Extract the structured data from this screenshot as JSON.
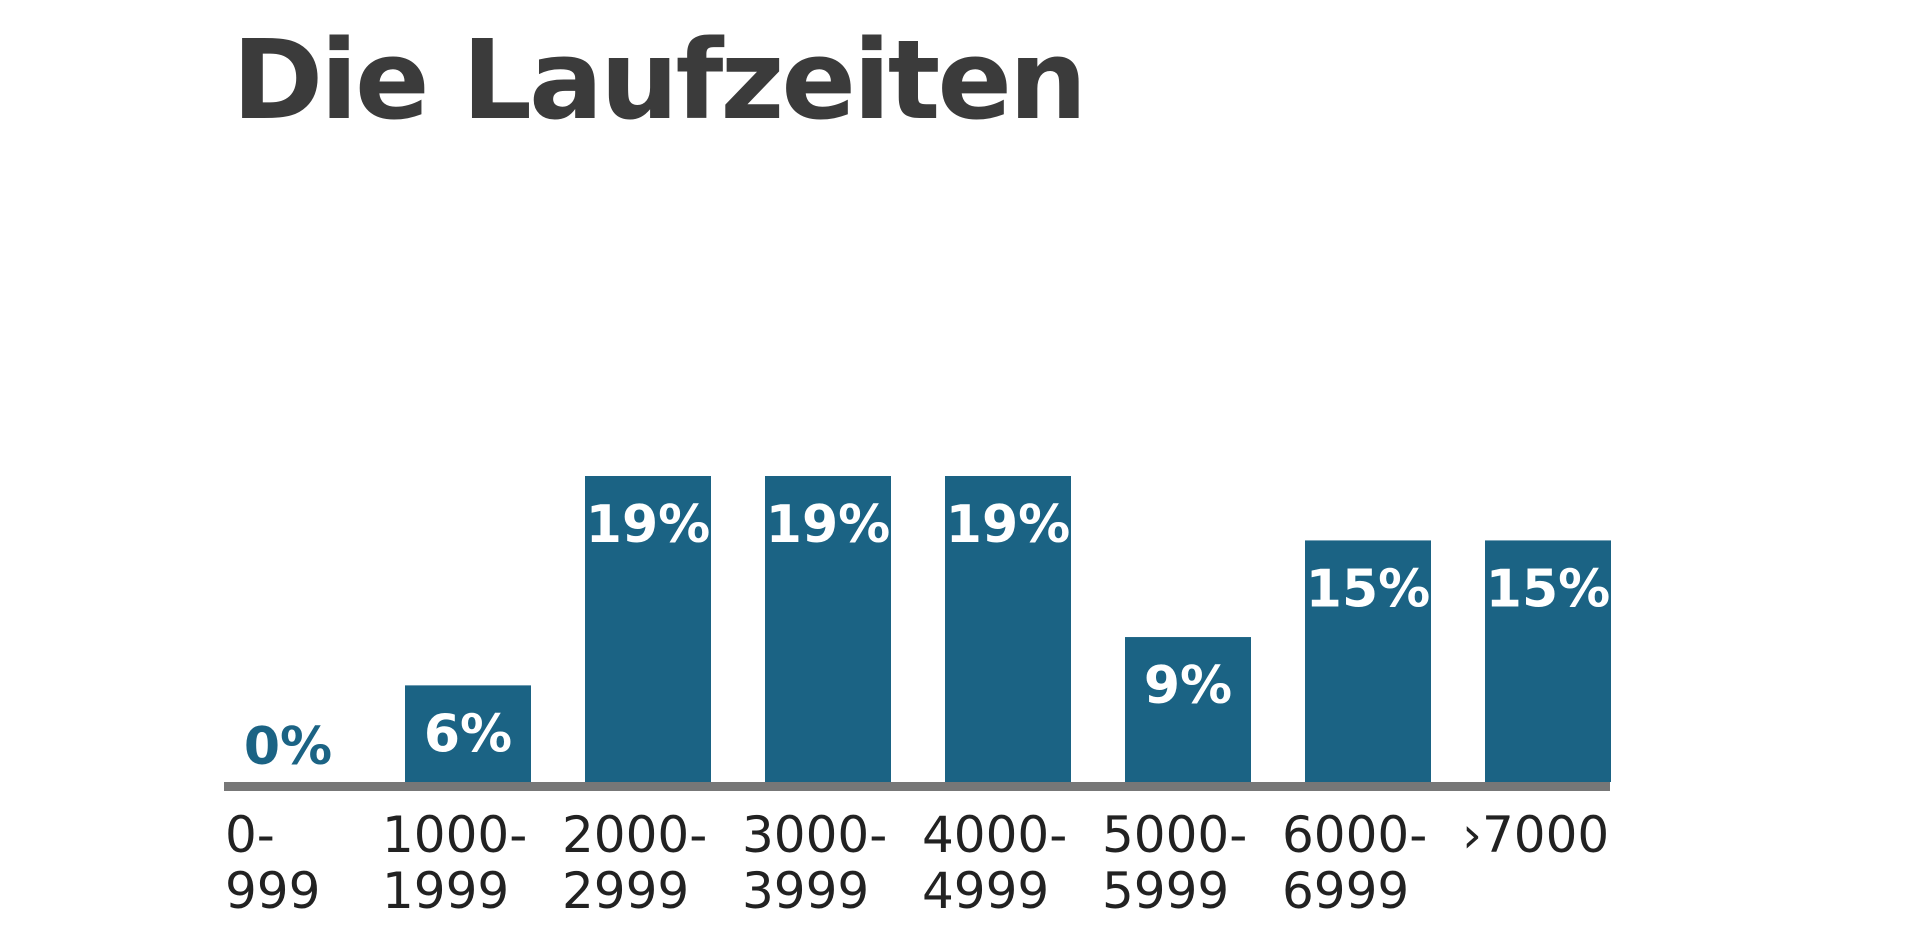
{
  "chart_data": {
    "type": "bar",
    "title": "Die Laufzeiten",
    "categories": [
      [
        "0-",
        "999"
      ],
      [
        "1000-",
        "1999"
      ],
      [
        "2000-",
        "2999"
      ],
      [
        "3000-",
        "3999"
      ],
      [
        "4000-",
        "4999"
      ],
      [
        "5000-",
        "5999"
      ],
      [
        "6000-",
        "6999"
      ],
      [
        "›7000"
      ]
    ],
    "values": [
      0,
      6,
      19,
      19,
      19,
      9,
      15,
      15
    ],
    "value_labels": [
      "0%",
      "6%",
      "19%",
      "19%",
      "19%",
      "9%",
      "15%",
      "15%"
    ],
    "ylim": [
      0,
      19
    ],
    "grid": false,
    "legend": "none",
    "bar_color": "#1b6384",
    "baseline_color": "#777777",
    "title_color": "#3b3b3b"
  }
}
